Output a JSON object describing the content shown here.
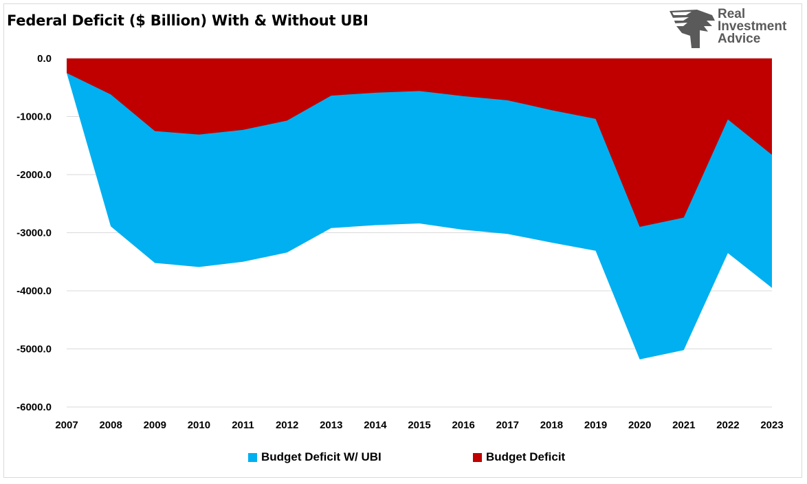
{
  "colors": {
    "ubi": "#00b0f0",
    "deficit": "#c00000",
    "grid": "#d9d9d9",
    "logo": "#5a5a5a"
  },
  "brand": {
    "line1": "Real",
    "line2": "Investment",
    "line3": "Advice",
    "logo_icon": "eagle-head-icon"
  },
  "chart_data": {
    "type": "area",
    "title": "Federal Deficit ($ Billion) With & Without UBI",
    "xlabel": "",
    "ylabel": "",
    "ylim": [
      -6000,
      0
    ],
    "y_ticks": [
      0,
      -1000,
      -2000,
      -3000,
      -4000,
      -5000,
      -6000
    ],
    "y_tick_labels": [
      "0.0",
      "-1000.0",
      "-2000.0",
      "-3000.0",
      "-4000.0",
      "-5000.0",
      "-6000.0"
    ],
    "grid": true,
    "legend_position": "bottom",
    "categories": [
      "2007",
      "2008",
      "2009",
      "2010",
      "2011",
      "2012",
      "2013",
      "2014",
      "2015",
      "2016",
      "2017",
      "2018",
      "2019",
      "2020",
      "2021",
      "2022",
      "2023"
    ],
    "series": [
      {
        "name": "Budget Deficit W/ UBI",
        "values": [
          -250,
          -2890,
          -3520,
          -3590,
          -3500,
          -3340,
          -2920,
          -2870,
          -2840,
          -2950,
          -3020,
          -3170,
          -3310,
          -5180,
          -5020,
          -3350,
          -3950
        ]
      },
      {
        "name": "Budget Deficit",
        "values": [
          -250,
          -620,
          -1250,
          -1310,
          -1230,
          -1070,
          -640,
          -590,
          -560,
          -650,
          -720,
          -890,
          -1040,
          -2900,
          -2740,
          -1050,
          -1660
        ]
      }
    ]
  }
}
